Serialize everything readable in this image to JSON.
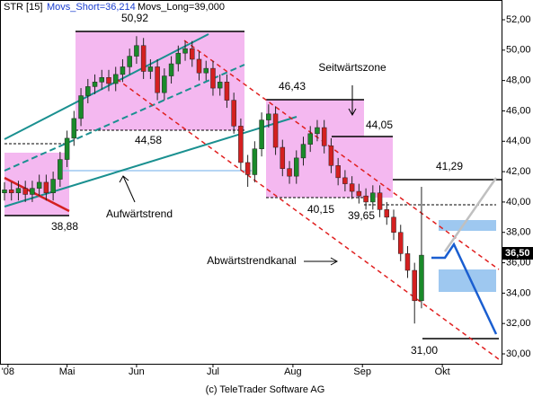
{
  "chart_data": {
    "type": "candlestick",
    "header": {
      "symbol": "STR [15]",
      "short": "Movs_Short=36,214",
      "long": "Movs_Long=39,000"
    },
    "footer": "(c) TeleTrader Software AG",
    "last_price_label": "36,50",
    "annotations": [
      "50,92",
      "44,58",
      "38,88",
      "46,43",
      "44,05",
      "40,15",
      "39,65",
      "41,29",
      "31,00",
      "Seitwärtszone",
      "Aufwärtstrend",
      "Abwärtstrendkanal"
    ],
    "x": [
      0,
      2,
      4,
      6,
      8,
      10,
      12,
      14,
      16,
      18,
      20,
      22,
      24,
      26,
      28,
      30,
      32,
      34,
      36,
      38,
      40,
      42,
      44,
      46,
      48,
      50,
      52,
      54,
      56,
      58,
      60,
      62,
      64,
      66,
      68,
      70,
      72,
      74,
      76,
      78,
      80,
      82,
      84,
      86,
      88,
      90,
      92,
      94,
      96,
      98,
      100,
      102,
      104,
      106,
      108,
      110,
      112,
      114,
      116,
      118,
      120
    ],
    "open": [
      40.6,
      40.8,
      40.6,
      40.9,
      40.5,
      40.9,
      41.3,
      40.6,
      41.5,
      42.8,
      44.2,
      45.5,
      47.0,
      47.6,
      47.9,
      48.2,
      47.8,
      48.4,
      48.9,
      49.6,
      50.3,
      48.6,
      48.9,
      47.2,
      48.3,
      49.1,
      49.8,
      50.1,
      49.4,
      48.5,
      48.8,
      47.5,
      47.9,
      46.7,
      45.0,
      42.6,
      41.8,
      43.5,
      45.4,
      45.8,
      43.6,
      42.2,
      41.7,
      42.9,
      43.8,
      44.5,
      44.9,
      43.7,
      42.4,
      41.6,
      41.2,
      40.7,
      40.4,
      40.0,
      40.6,
      39.5,
      39.0,
      38.0,
      36.6,
      35.5,
      33.5
    ],
    "high": [
      41.3,
      41.3,
      41.4,
      41.4,
      41.4,
      41.8,
      41.8,
      42.0,
      43.3,
      44.7,
      46.0,
      47.5,
      48.1,
      48.4,
      48.7,
      48.7,
      48.9,
      49.4,
      50.1,
      50.92,
      50.8,
      49.4,
      49.4,
      48.8,
      49.6,
      50.3,
      50.6,
      50.6,
      49.9,
      49.3,
      49.3,
      48.4,
      48.4,
      47.2,
      45.5,
      43.1,
      44.0,
      45.9,
      46.43,
      46.3,
      44.1,
      42.7,
      43.4,
      44.3,
      45.0,
      45.4,
      45.4,
      44.2,
      42.9,
      42.1,
      41.7,
      41.2,
      40.9,
      41.1,
      41.1,
      40.0,
      39.5,
      38.5,
      37.1,
      36.0,
      41.0
    ],
    "low": [
      40.1,
      40.1,
      40.1,
      40.0,
      40.0,
      40.4,
      40.1,
      40.1,
      41.0,
      42.3,
      43.7,
      45.0,
      46.5,
      47.1,
      47.4,
      47.3,
      47.3,
      47.9,
      48.4,
      49.1,
      48.1,
      48.1,
      46.7,
      46.7,
      47.8,
      48.6,
      49.3,
      48.9,
      48.0,
      48.0,
      47.0,
      47.0,
      46.2,
      44.5,
      42.1,
      41.0,
      41.3,
      43.0,
      44.9,
      43.1,
      41.7,
      41.2,
      41.2,
      42.4,
      43.3,
      44.0,
      43.2,
      41.9,
      41.1,
      40.7,
      40.2,
      39.9,
      39.5,
      39.5,
      39.0,
      38.5,
      37.5,
      36.1,
      35.0,
      32.0,
      33.0
    ],
    "close": [
      40.8,
      40.6,
      40.9,
      40.5,
      40.9,
      41.3,
      40.6,
      41.5,
      42.8,
      44.2,
      45.5,
      47.0,
      47.6,
      47.9,
      48.2,
      47.8,
      48.4,
      48.9,
      49.6,
      50.3,
      48.6,
      48.9,
      47.2,
      48.3,
      49.1,
      49.8,
      50.1,
      49.4,
      48.5,
      48.8,
      47.5,
      47.9,
      46.7,
      45.0,
      42.6,
      41.8,
      43.5,
      45.4,
      45.8,
      43.6,
      42.2,
      41.7,
      42.9,
      43.8,
      44.5,
      44.9,
      43.7,
      42.4,
      41.6,
      41.2,
      40.7,
      40.4,
      40.0,
      40.6,
      39.5,
      39.0,
      38.0,
      36.6,
      35.5,
      33.5,
      36.5
    ],
    "up_color": "#1a8a2a",
    "down_color": "#d42020",
    "xlim": [
      0,
      142
    ],
    "ylim": [
      30,
      52
    ],
    "xticks": [
      {
        "value": 1,
        "label": "'08"
      },
      {
        "value": 18,
        "label": "Mai"
      },
      {
        "value": 38,
        "label": "Jun"
      },
      {
        "value": 60,
        "label": "Jul"
      },
      {
        "value": 83,
        "label": "Aug"
      },
      {
        "value": 103,
        "label": "Sep"
      },
      {
        "value": 126,
        "label": "Okt"
      }
    ],
    "yticks": [
      {
        "value": 30,
        "label": "30,00"
      },
      {
        "value": 32,
        "label": "32,00"
      },
      {
        "value": 34,
        "label": "34,00"
      },
      {
        "value": 36,
        "label": "36,00"
      },
      {
        "value": 38,
        "label": "38,00"
      },
      {
        "value": 40,
        "label": "40,00"
      },
      {
        "value": 42,
        "label": "42,00"
      },
      {
        "value": 44,
        "label": "44,00"
      },
      {
        "value": 46,
        "label": "46,00"
      },
      {
        "value": 48,
        "label": "48,00"
      },
      {
        "value": 50,
        "label": "50,00"
      },
      {
        "value": 52,
        "label": "52,00"
      }
    ]
  }
}
